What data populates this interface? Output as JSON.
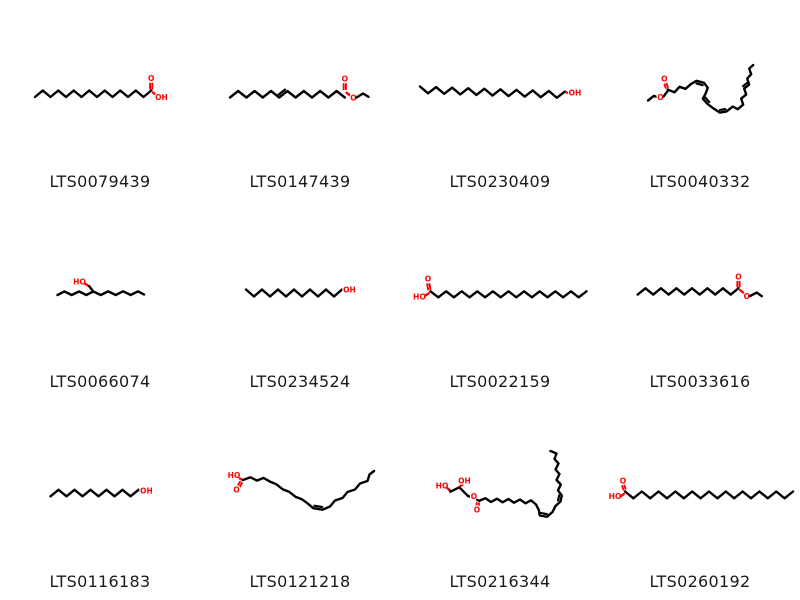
{
  "page": {
    "background": "#ffffff",
    "bond_color": "#000000",
    "heteroatom_color": "#ff0000",
    "label_color": "#1a1a1a"
  },
  "molecules": [
    {
      "id": "LTS0079439",
      "prims": [
        [
          "zz",
          35,
          97,
          7.75,
          15,
          6.5,
          1,
          0
        ],
        [
          "db",
          151.2,
          83.5,
          151.2,
          88.8,
          "r"
        ],
        [
          "tx",
          151.2,
          81,
          "O",
          "r"
        ],
        [
          "ln",
          153,
          92.5,
          155.8,
          94.8,
          "r"
        ],
        [
          "tx",
          161.5,
          100,
          "OH",
          "r"
        ]
      ]
    },
    {
      "id": "LTS0147439",
      "prims": [
        [
          "zz",
          30,
          97.5,
          8.2,
          14,
          6.5,
          1,
          0
        ],
        [
          "par",
          79.2,
          97.5,
          87.4,
          91,
          -1
        ],
        [
          "db",
          144.8,
          83.9,
          144.8,
          89.2,
          "r"
        ],
        [
          "tx",
          144.8,
          81.5,
          "O",
          "r"
        ],
        [
          "ln",
          146.6,
          92.8,
          149.8,
          95.3,
          "r"
        ],
        [
          "tx",
          153.5,
          100.5,
          "O",
          "r"
        ],
        [
          "pl",
          [
            156.5,
            97.5,
            163,
            93.5,
            168.5,
            96.8
          ]
        ]
      ]
    },
    {
      "id": "LTS0230409",
      "prims": [
        [
          "zz",
          20,
          86.5,
          8.05,
          18,
          6.5,
          -1,
          0.28
        ],
        [
          "ln",
          166,
          92.2,
          169.5,
          93.6,
          "r"
        ],
        [
          "tx",
          175,
          95.5,
          "OH",
          "r"
        ]
      ]
    },
    {
      "id": "LTS0040332",
      "prims": [
        [
          "pl",
          [
            48,
            100.5,
            54,
            95.8,
            57.5,
            97.3
          ]
        ],
        [
          "tx",
          60.5,
          100,
          "O",
          "r"
        ],
        [
          "ln",
          63.5,
          96.5,
          67.7,
          91,
          "k"
        ],
        [
          "db",
          66.8,
          87.5,
          65.6,
          84,
          "r"
        ],
        [
          "tx",
          64.3,
          81.3,
          "O",
          "r"
        ],
        [
          "pl",
          [
            67.7,
            89.5,
            74.5,
            92.3,
            79.5,
            86.8,
            85.5,
            88.8,
            91,
            84,
            96.5,
            80.8,
            104,
            82.8,
            107.8,
            87.8,
            105.5,
            93.8,
            102.8,
            98.8,
            107.8,
            104.2,
            113.8,
            108.6,
            119.8,
            112.6,
            126.3,
            111.6,
            132.8,
            106.6,
            137.8,
            109.2,
            143.2,
            104.6,
            141.2,
            98.6,
            146.2,
            94.6,
            144.2,
            88.6,
            149.2,
            84.6,
            147.2,
            78.6,
            151.2,
            74.2,
            149.2,
            68.6,
            153.2,
            65
          ]
        ],
        [
          "par",
          96.5,
          80.8,
          104,
          82.8,
          1
        ],
        [
          "par",
          102.8,
          98.8,
          107.8,
          104.2,
          -1
        ],
        [
          "par",
          119.8,
          112.6,
          126.3,
          111.6,
          -1
        ],
        [
          "par",
          144.2,
          88.6,
          149.2,
          84.6,
          -1
        ]
      ]
    },
    {
      "id": "LTS0066074",
      "prims": [
        [
          "tx",
          79.5,
          84.5,
          "HO",
          "r"
        ],
        [
          "ln",
          85.5,
          84,
          89.3,
          86.3,
          "r"
        ],
        [
          "pl",
          [
            89.3,
            86.3,
            93.3,
            91.5
          ]
        ],
        [
          "pl",
          [
            93.3,
            91.5,
            86.3,
            95,
            79,
            91.4,
            71.7,
            95,
            64.5,
            91.4,
            57.5,
            95
          ]
        ],
        [
          "pl",
          [
            93.3,
            91.5,
            100.8,
            95,
            108.2,
            91.3,
            115.7,
            95,
            123.1,
            91.3,
            130.6,
            95,
            138,
            91.3,
            144,
            94.5
          ]
        ]
      ]
    },
    {
      "id": "LTS0234524",
      "prims": [
        [
          "zz",
          46,
          89.5,
          8,
          12,
          7,
          -1,
          0
        ],
        [
          "ln",
          143.5,
          90,
          145.2,
          90.9,
          "r"
        ],
        [
          "tx",
          149.5,
          92.5,
          "OH",
          "r"
        ]
      ]
    },
    {
      "id": "LTS0022159",
      "prims": [
        [
          "tx",
          19.5,
          99.5,
          "HO",
          "r"
        ],
        [
          "ln",
          25.5,
          95.5,
          28.8,
          93.3,
          "r"
        ],
        [
          "db",
          29.3,
          89.3,
          28.3,
          84,
          "r"
        ],
        [
          "tx",
          28,
          81.5,
          "O",
          "r"
        ],
        [
          "zz",
          30.5,
          91.3,
          7.8,
          20,
          6,
          -1,
          0
        ]
      ]
    },
    {
      "id": "LTS0033616",
      "prims": [
        [
          "zz",
          37.7,
          94.6,
          7.75,
          13,
          6.3,
          1,
          0
        ],
        [
          "db",
          138.5,
          81.7,
          138.5,
          86.6,
          "r"
        ],
        [
          "tx",
          138.5,
          79.3,
          "O",
          "r"
        ],
        [
          "ln",
          140.3,
          90.2,
          143.6,
          93,
          "r"
        ],
        [
          "tx",
          146.8,
          99,
          "O",
          "r"
        ],
        [
          "pl",
          [
            150,
            96,
            156.8,
            92.6,
            161.8,
            96.2
          ]
        ]
      ]
    },
    {
      "id": "LTS0116183",
      "prims": [
        [
          "zz",
          50.5,
          96.3,
          8,
          11,
          6.5,
          1,
          0
        ],
        [
          "ln",
          140,
          90.8,
          142,
          91.7,
          "r"
        ],
        [
          "tx",
          146.5,
          93.5,
          "OH",
          "r"
        ]
      ]
    },
    {
      "id": "LTS0121218",
      "prims": [
        [
          "tx",
          34,
          78,
          "HO",
          "r"
        ],
        [
          "ln",
          39.8,
          78.6,
          42.8,
          80,
          "r"
        ],
        [
          "db",
          41,
          82.3,
          38.6,
          86.6,
          "r"
        ],
        [
          "tx",
          36.5,
          92.3,
          "O",
          "r"
        ],
        [
          "pl",
          [
            43,
            80,
            50.5,
            77.3,
            57,
            80.6,
            63.5,
            77.9,
            70,
            81.6,
            76.2,
            84.2,
            82.6,
            89.2,
            89,
            91.7,
            95.4,
            96.7,
            101.8,
            99.2,
            108,
            103.7,
            113.2,
            108.2,
            122.6,
            109.7,
            130,
            106.5,
            135,
            100.5,
            142.5,
            98,
            147.5,
            92,
            155,
            89.5,
            160,
            83.5,
            167.5,
            81,
            169.5,
            74.5,
            174,
            71
          ]
        ],
        [
          "par",
          113.2,
          108.2,
          122.6,
          109.7,
          -1
        ]
      ]
    },
    {
      "id": "LTS0216344",
      "prims": [
        [
          "tx",
          42,
          88.5,
          "HO",
          "r"
        ],
        [
          "ln",
          47.5,
          88.3,
          50.2,
          90.8,
          "r"
        ],
        [
          "pl",
          [
            50.2,
            90.8,
            50.5,
            91.7,
            59.3,
            87.3,
            68,
            96
          ]
        ],
        [
          "ln",
          60.3,
          86,
          62.3,
          84.6,
          "r"
        ],
        [
          "tx",
          64.5,
          83.5,
          "OH",
          "r"
        ],
        [
          "ln",
          68,
          96,
          70.6,
          96.8,
          "k"
        ],
        [
          "tx",
          74,
          99,
          "O",
          "r"
        ],
        [
          "ln",
          77.2,
          99.8,
          79.2,
          100.8,
          "k"
        ],
        [
          "db",
          77.9,
          103,
          77.2,
          107.8,
          "r"
        ],
        [
          "tx",
          77,
          112.5,
          "O",
          "r"
        ],
        [
          "pl",
          [
            79.2,
            100.8,
            85.5,
            98.3,
            91,
            102,
            97,
            98.7,
            102.5,
            102.3,
            108.5,
            99,
            114,
            102.7,
            120,
            99.5,
            125.5,
            103.3,
            131,
            100.3,
            136,
            104.5,
            138.8,
            110,
            139.8,
            115.5,
            147,
            116.8,
            152.5,
            112,
            155.5,
            106,
            160.5,
            101.5,
            161.8,
            95.5,
            158,
            90.5,
            160.8,
            84.5,
            156.5,
            80,
            159.5,
            74,
            155.5,
            69.5,
            158.5,
            63.5,
            154.5,
            59,
            156.5,
            53.5,
            150.5,
            51
          ]
        ],
        [
          "par",
          139.8,
          115.5,
          147,
          116.8,
          -1
        ],
        [
          "par",
          160.5,
          101.5,
          161.8,
          95.5,
          -1
        ]
      ]
    },
    {
      "id": "LTS0260192",
      "prims": [
        [
          "tx",
          15,
          98.8,
          "HO",
          "r"
        ],
        [
          "ln",
          20.5,
          96.5,
          23.8,
          94,
          "r"
        ],
        [
          "db",
          24.5,
          89.3,
          23.3,
          85.8,
          "r"
        ],
        [
          "tx",
          23,
          83.3,
          "O",
          "r"
        ],
        [
          "zz",
          25,
          91.5,
          8.4,
          20,
          6.8,
          -1,
          0
        ]
      ]
    }
  ]
}
